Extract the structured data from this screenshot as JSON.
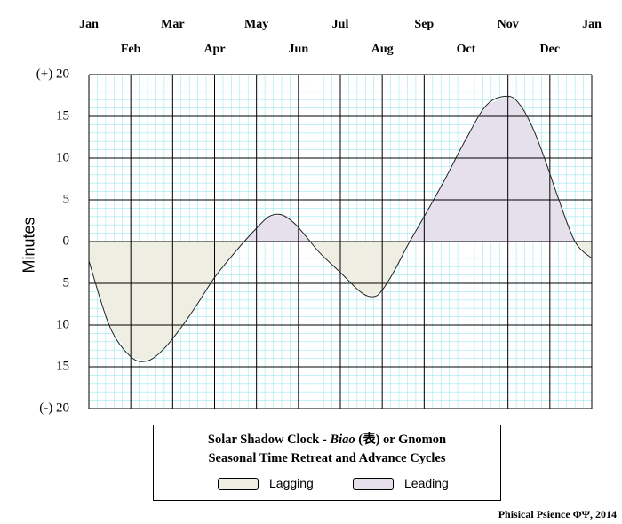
{
  "chart_data": {
    "type": "area",
    "title_line1_pre": "Solar Shadow Clock - ",
    "title_line1_italic": "Biao",
    "title_line1_post": " (表) or Gnomon",
    "title_line2": "Seasonal Time Retreat and Advance Cycles",
    "ylabel": "Minutes",
    "ylim": [
      -20,
      20
    ],
    "yticks": [
      "(+) 20",
      "15",
      "10",
      "5",
      "0",
      "5",
      "10",
      "15",
      "(-) 20"
    ],
    "months_top": [
      "Jan",
      "Mar",
      "May",
      "Jul",
      "Sep",
      "Nov",
      "Jan"
    ],
    "months_bottom": [
      "Feb",
      "Apr",
      "Jun",
      "Aug",
      "Oct",
      "Dec"
    ],
    "x_unit": "month (0 = start of Jan, 12 = start of next Jan)",
    "xlim": [
      0,
      12
    ],
    "series": [
      {
        "name": "Minutes",
        "x": [
          0,
          0.5,
          1,
          1.4,
          1.8,
          2.2,
          2.6,
          3,
          3.5,
          4,
          4.3,
          4.6,
          4.9,
          5.2,
          5.5,
          6,
          6.5,
          6.8,
          7,
          7.3,
          7.6,
          8,
          8.5,
          9,
          9.5,
          10,
          10.3,
          10.6,
          10.9,
          11.2,
          11.6,
          12
        ],
        "y": [
          -2.3,
          -10.2,
          -13.8,
          -14.3,
          -12.8,
          -10.3,
          -7.4,
          -4.3,
          -1.2,
          1.6,
          3.0,
          3.2,
          2.2,
          0.5,
          -1.3,
          -3.7,
          -6.1,
          -6.6,
          -5.8,
          -3.4,
          -0.5,
          3.0,
          7.5,
          12.3,
          16.4,
          17.4,
          16.3,
          13.5,
          9.6,
          5.2,
          0.0,
          -2.0
        ]
      }
    ],
    "legend": [
      {
        "label": "Lagging",
        "color": "#efeee2"
      },
      {
        "label": "Leading",
        "color": "#e5e0ec"
      }
    ],
    "grid": true
  },
  "colors": {
    "lagging": "#efeee2",
    "leading": "#e5e0ec",
    "minor_grid": "#9fe8f0",
    "major_grid": "#000000"
  },
  "credit": "Phisical Psience ΦΨ,  2014"
}
